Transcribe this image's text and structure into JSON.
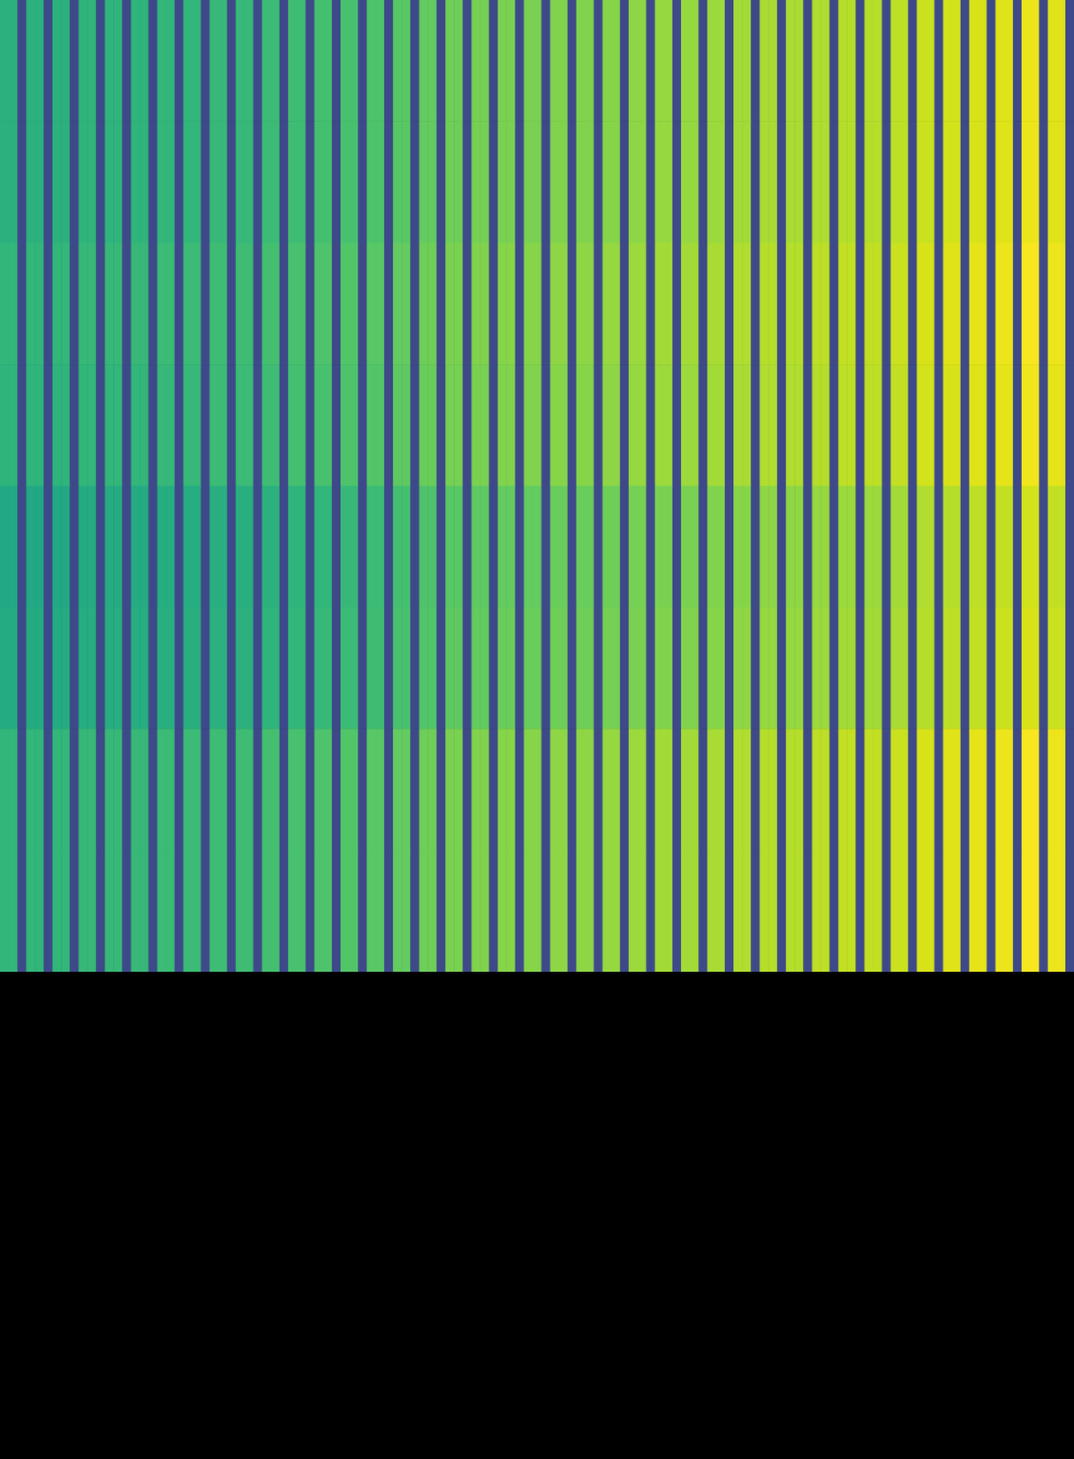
{
  "chart_data": {
    "type": "heatmap",
    "color": "viridis",
    "tick_labels": false,
    "zlim": [
      0,
      100
    ],
    "values": [
      [
        64,
        64,
        22,
        64,
        64,
        22,
        64,
        64,
        22,
        65,
        65,
        22,
        65,
        65,
        22,
        65,
        65,
        22,
        66,
        66,
        22,
        66,
        66,
        22,
        67,
        67,
        22,
        67,
        67,
        22,
        68,
        68,
        22,
        69,
        69,
        22,
        70,
        70,
        22,
        71,
        71,
        22,
        72,
        72,
        22,
        74,
        74,
        22,
        76,
        76,
        22,
        78,
        78,
        22,
        79,
        79,
        22,
        80,
        80,
        22,
        80,
        80,
        22,
        81,
        81,
        22,
        81,
        81,
        22,
        82,
        82,
        22,
        83,
        83,
        22,
        84,
        84,
        22,
        84,
        84,
        22,
        85,
        85,
        22,
        86,
        86,
        22,
        87,
        87,
        22,
        87,
        87,
        22,
        88,
        88,
        22,
        89,
        89,
        22,
        89,
        89,
        22,
        90,
        90,
        22,
        92,
        92,
        22,
        93,
        93,
        22,
        94,
        94,
        22,
        95,
        95,
        22,
        97,
        97,
        22,
        95,
        95,
        22
      ],
      [
        64,
        64,
        22,
        64,
        64,
        22,
        64,
        64,
        22,
        65,
        65,
        22,
        65,
        65,
        22,
        65,
        65,
        22,
        66,
        66,
        22,
        66,
        66,
        22,
        67,
        67,
        22,
        67,
        67,
        22,
        68,
        68,
        22,
        69,
        69,
        22,
        70,
        70,
        22,
        71,
        71,
        22,
        72,
        72,
        22,
        74,
        74,
        22,
        76,
        76,
        22,
        78,
        78,
        22,
        79,
        79,
        22,
        80,
        80,
        22,
        80,
        80,
        22,
        81,
        81,
        22,
        81,
        81,
        22,
        82,
        82,
        22,
        83,
        83,
        22,
        84,
        84,
        22,
        84,
        84,
        22,
        85,
        85,
        22,
        86,
        86,
        22,
        87,
        87,
        22,
        87,
        87,
        22,
        88,
        88,
        22,
        89,
        89,
        22,
        89,
        89,
        22,
        90,
        90,
        22,
        92,
        92,
        22,
        93,
        93,
        22,
        94,
        94,
        22,
        95,
        95,
        22,
        97,
        97,
        22,
        95,
        95,
        22
      ],
      [
        66,
        66,
        22,
        66,
        66,
        22,
        66,
        66,
        22,
        67,
        67,
        22,
        67,
        67,
        22,
        67,
        67,
        22,
        68,
        68,
        22,
        68,
        68,
        22,
        69,
        69,
        22,
        69,
        69,
        22,
        70,
        70,
        22,
        71,
        71,
        22,
        72,
        72,
        22,
        73,
        73,
        22,
        74,
        74,
        22,
        76,
        76,
        22,
        78,
        78,
        22,
        80,
        80,
        22,
        81,
        81,
        22,
        82,
        82,
        22,
        82,
        82,
        22,
        83,
        83,
        22,
        83,
        83,
        22,
        84,
        84,
        22,
        85,
        85,
        22,
        86,
        86,
        22,
        86,
        86,
        22,
        87,
        87,
        22,
        88,
        88,
        22,
        89,
        89,
        22,
        89,
        89,
        22,
        90,
        90,
        22,
        91,
        91,
        22,
        91,
        91,
        22,
        92,
        92,
        22,
        94,
        94,
        22,
        95,
        95,
        22,
        96,
        96,
        22,
        97,
        97,
        22,
        99,
        99,
        22,
        97,
        97,
        22
      ],
      [
        65,
        65,
        22,
        65,
        65,
        22,
        65,
        65,
        22,
        66,
        66,
        22,
        66,
        66,
        22,
        66,
        66,
        22,
        67,
        67,
        22,
        67,
        67,
        22,
        68,
        68,
        22,
        68,
        68,
        22,
        69,
        69,
        22,
        70,
        70,
        22,
        71,
        71,
        22,
        72,
        72,
        22,
        73,
        73,
        22,
        75,
        75,
        22,
        77,
        77,
        22,
        79,
        79,
        22,
        80,
        80,
        22,
        81,
        81,
        22,
        81,
        81,
        22,
        82,
        82,
        22,
        82,
        82,
        22,
        83,
        83,
        22,
        84,
        84,
        22,
        85,
        85,
        22,
        85,
        85,
        22,
        86,
        86,
        22,
        87,
        87,
        22,
        88,
        88,
        22,
        88,
        88,
        22,
        89,
        89,
        22,
        90,
        90,
        22,
        90,
        90,
        22,
        91,
        91,
        22,
        93,
        93,
        22,
        94,
        94,
        22,
        95,
        95,
        22,
        96,
        96,
        22,
        98,
        98,
        22,
        96,
        96,
        22
      ],
      [
        60,
        60,
        22,
        60,
        60,
        22,
        60,
        60,
        22,
        61,
        61,
        22,
        61,
        61,
        22,
        61,
        61,
        22,
        62,
        62,
        22,
        62,
        62,
        22,
        63,
        63,
        22,
        63,
        63,
        22,
        64,
        64,
        22,
        65,
        65,
        22,
        66,
        66,
        22,
        67,
        67,
        22,
        68,
        68,
        22,
        70,
        70,
        22,
        72,
        72,
        22,
        74,
        74,
        22,
        75,
        75,
        22,
        76,
        76,
        22,
        76,
        76,
        22,
        77,
        77,
        22,
        77,
        77,
        22,
        78,
        78,
        22,
        79,
        79,
        22,
        80,
        80,
        22,
        80,
        80,
        22,
        81,
        81,
        22,
        82,
        82,
        22,
        83,
        83,
        22,
        83,
        83,
        22,
        84,
        84,
        22,
        85,
        85,
        22,
        85,
        85,
        22,
        86,
        86,
        22,
        88,
        88,
        22,
        89,
        89,
        22,
        90,
        90,
        22,
        91,
        91,
        22,
        93,
        93,
        22,
        91,
        91,
        22
      ],
      [
        61,
        61,
        22,
        61,
        61,
        22,
        61,
        61,
        22,
        62,
        62,
        22,
        62,
        62,
        22,
        62,
        62,
        22,
        63,
        63,
        22,
        63,
        63,
        22,
        64,
        64,
        22,
        64,
        64,
        22,
        65,
        65,
        22,
        66,
        66,
        22,
        67,
        67,
        22,
        68,
        68,
        22,
        69,
        69,
        22,
        71,
        71,
        22,
        73,
        73,
        22,
        75,
        75,
        22,
        76,
        76,
        22,
        77,
        77,
        22,
        77,
        77,
        22,
        78,
        78,
        22,
        78,
        78,
        22,
        79,
        79,
        22,
        80,
        80,
        22,
        81,
        81,
        22,
        81,
        81,
        22,
        82,
        82,
        22,
        83,
        83,
        22,
        84,
        84,
        22,
        84,
        84,
        22,
        85,
        85,
        22,
        86,
        86,
        22,
        86,
        86,
        22,
        87,
        87,
        22,
        89,
        89,
        22,
        90,
        90,
        22,
        91,
        91,
        22,
        92,
        92,
        22,
        94,
        94,
        22,
        92,
        92,
        22
      ],
      [
        66,
        66,
        22,
        66,
        66,
        22,
        66,
        66,
        22,
        67,
        67,
        22,
        67,
        67,
        22,
        67,
        67,
        22,
        68,
        68,
        22,
        68,
        68,
        22,
        69,
        69,
        22,
        69,
        69,
        22,
        70,
        70,
        22,
        71,
        71,
        22,
        72,
        72,
        22,
        73,
        73,
        22,
        74,
        74,
        22,
        76,
        76,
        22,
        78,
        78,
        22,
        80,
        80,
        22,
        81,
        81,
        22,
        82,
        82,
        22,
        82,
        82,
        22,
        83,
        83,
        22,
        83,
        83,
        22,
        84,
        84,
        22,
        85,
        85,
        22,
        86,
        86,
        22,
        86,
        86,
        22,
        87,
        87,
        22,
        88,
        88,
        22,
        89,
        89,
        22,
        89,
        89,
        22,
        90,
        90,
        22,
        91,
        91,
        22,
        91,
        91,
        22,
        92,
        92,
        22,
        94,
        94,
        22,
        95,
        95,
        22,
        96,
        96,
        22,
        97,
        97,
        22,
        99,
        99,
        22,
        97,
        97,
        22
      ],
      [
        66,
        66,
        22,
        66,
        66,
        22,
        66,
        66,
        22,
        67,
        67,
        22,
        67,
        67,
        22,
        67,
        67,
        22,
        68,
        68,
        22,
        68,
        68,
        22,
        69,
        69,
        22,
        69,
        69,
        22,
        70,
        70,
        22,
        71,
        71,
        22,
        72,
        72,
        22,
        73,
        73,
        22,
        74,
        74,
        22,
        76,
        76,
        22,
        78,
        78,
        22,
        80,
        80,
        22,
        81,
        81,
        22,
        82,
        82,
        22,
        82,
        82,
        22,
        83,
        83,
        22,
        83,
        83,
        22,
        84,
        84,
        22,
        85,
        85,
        22,
        86,
        86,
        22,
        86,
        86,
        22,
        87,
        87,
        22,
        88,
        88,
        22,
        89,
        89,
        22,
        89,
        89,
        22,
        90,
        90,
        22,
        91,
        91,
        22,
        91,
        91,
        22,
        92,
        92,
        22,
        94,
        94,
        22,
        95,
        95,
        22,
        96,
        96,
        22,
        97,
        97,
        22,
        99,
        99,
        22,
        97,
        97,
        22
      ]
    ]
  }
}
